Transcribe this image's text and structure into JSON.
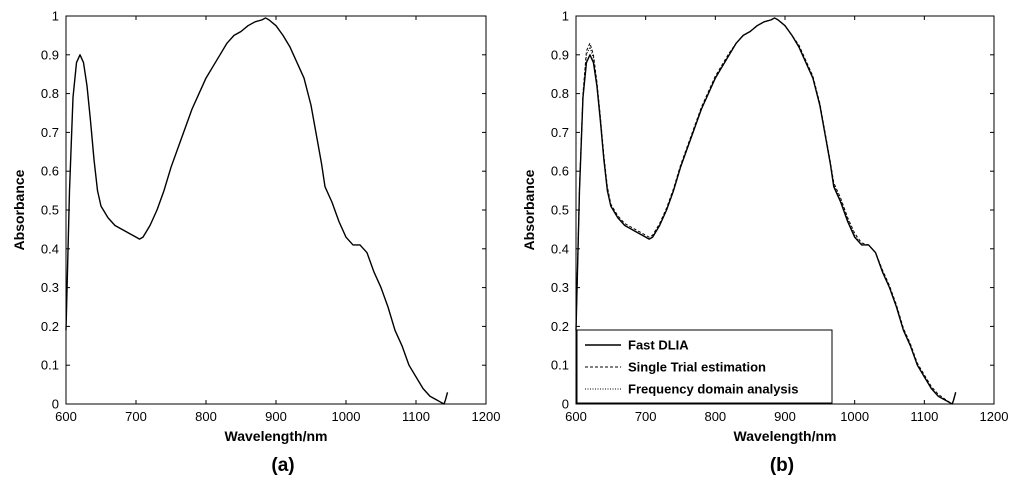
{
  "chart_data": [
    {
      "type": "line",
      "panel_label": "(a)",
      "xlabel": "Wavelength/nm",
      "ylabel": "Absorbance",
      "xlim": [
        600,
        1200
      ],
      "ylim": [
        0,
        1
      ],
      "xticks": [
        "600",
        "700",
        "800",
        "900",
        "1000",
        "1100",
        "1200"
      ],
      "yticks": [
        "0",
        "0.1",
        "0.2",
        "0.3",
        "0.4",
        "0.5",
        "0.6",
        "0.7",
        "0.8",
        "0.9",
        "1"
      ],
      "grid": false,
      "legend": null,
      "series": [
        {
          "color": "#000000",
          "style": "solid",
          "x": [
            600,
            605,
            610,
            615,
            620,
            625,
            630,
            635,
            640,
            645,
            650,
            660,
            670,
            680,
            690,
            700,
            705,
            710,
            720,
            730,
            740,
            750,
            760,
            770,
            780,
            790,
            800,
            810,
            820,
            830,
            840,
            850,
            860,
            870,
            880,
            885,
            890,
            900,
            910,
            920,
            930,
            940,
            950,
            955,
            960,
            965,
            970,
            975,
            980,
            990,
            1000,
            1010,
            1020,
            1030,
            1040,
            1050,
            1060,
            1070,
            1080,
            1090,
            1100,
            1110,
            1120,
            1130,
            1135,
            1140,
            1142,
            1145
          ],
          "y": [
            0.19,
            0.55,
            0.79,
            0.88,
            0.9,
            0.88,
            0.82,
            0.73,
            0.63,
            0.55,
            0.51,
            0.48,
            0.46,
            0.45,
            0.44,
            0.43,
            0.425,
            0.43,
            0.46,
            0.5,
            0.55,
            0.61,
            0.66,
            0.71,
            0.76,
            0.8,
            0.84,
            0.87,
            0.9,
            0.93,
            0.95,
            0.96,
            0.975,
            0.985,
            0.99,
            0.995,
            0.99,
            0.975,
            0.95,
            0.92,
            0.88,
            0.84,
            0.77,
            0.72,
            0.67,
            0.62,
            0.56,
            0.54,
            0.52,
            0.47,
            0.43,
            0.41,
            0.41,
            0.39,
            0.34,
            0.3,
            0.25,
            0.19,
            0.15,
            0.1,
            0.07,
            0.04,
            0.02,
            0.01,
            0.005,
            0.0,
            0.01,
            0.03
          ]
        }
      ]
    },
    {
      "type": "line",
      "panel_label": "(b)",
      "xlabel": "Wavelength/nm",
      "ylabel": "Absorbance",
      "xlim": [
        600,
        1200
      ],
      "ylim": [
        0,
        1
      ],
      "xticks": [
        "600",
        "700",
        "800",
        "900",
        "1000",
        "1100",
        "1200"
      ],
      "yticks": [
        "0",
        "0.1",
        "0.2",
        "0.3",
        "0.4",
        "0.5",
        "0.6",
        "0.7",
        "0.8",
        "0.9",
        "1"
      ],
      "grid": false,
      "legend": "bottom-left",
      "series": [
        {
          "name": "Fast DLIA",
          "color": "#000000",
          "style": "solid",
          "x": [
            600,
            605,
            610,
            615,
            620,
            625,
            630,
            635,
            640,
            645,
            650,
            660,
            670,
            680,
            690,
            700,
            705,
            710,
            720,
            730,
            740,
            750,
            760,
            770,
            780,
            790,
            800,
            810,
            820,
            830,
            840,
            850,
            860,
            870,
            880,
            885,
            890,
            900,
            910,
            920,
            930,
            940,
            950,
            955,
            960,
            965,
            970,
            975,
            980,
            990,
            1000,
            1010,
            1020,
            1030,
            1040,
            1050,
            1060,
            1070,
            1080,
            1090,
            1100,
            1110,
            1120,
            1130,
            1135,
            1140,
            1142,
            1145
          ],
          "y": [
            0.19,
            0.55,
            0.79,
            0.88,
            0.9,
            0.88,
            0.82,
            0.73,
            0.63,
            0.55,
            0.51,
            0.48,
            0.46,
            0.45,
            0.44,
            0.43,
            0.425,
            0.43,
            0.46,
            0.5,
            0.55,
            0.61,
            0.66,
            0.71,
            0.76,
            0.8,
            0.84,
            0.87,
            0.9,
            0.93,
            0.95,
            0.96,
            0.975,
            0.985,
            0.99,
            0.995,
            0.99,
            0.975,
            0.95,
            0.92,
            0.88,
            0.84,
            0.77,
            0.72,
            0.67,
            0.62,
            0.56,
            0.54,
            0.52,
            0.47,
            0.43,
            0.41,
            0.41,
            0.39,
            0.34,
            0.3,
            0.25,
            0.19,
            0.15,
            0.1,
            0.07,
            0.04,
            0.02,
            0.01,
            0.005,
            0.0,
            0.01,
            0.03
          ]
        },
        {
          "name": "Single Trial estimation",
          "color": "#000000",
          "style": "dashed",
          "x": [
            600,
            605,
            610,
            615,
            620,
            625,
            630,
            635,
            640,
            645,
            650,
            660,
            670,
            680,
            690,
            700,
            705,
            710,
            720,
            730,
            740,
            750,
            760,
            770,
            780,
            790,
            800,
            810,
            820,
            830,
            840,
            850,
            860,
            870,
            880,
            885,
            890,
            900,
            910,
            920,
            930,
            940,
            950,
            955,
            960,
            965,
            970,
            975,
            980,
            990,
            1000,
            1010,
            1020,
            1030,
            1040,
            1050,
            1060,
            1070,
            1080,
            1090,
            1100,
            1110,
            1120,
            1130,
            1135,
            1140,
            1142,
            1145
          ],
          "y": [
            0.19,
            0.56,
            0.8,
            0.91,
            0.93,
            0.9,
            0.83,
            0.74,
            0.64,
            0.56,
            0.515,
            0.485,
            0.465,
            0.455,
            0.445,
            0.435,
            0.43,
            0.435,
            0.465,
            0.505,
            0.555,
            0.615,
            0.665,
            0.715,
            0.765,
            0.805,
            0.845,
            0.875,
            0.905,
            0.93,
            0.95,
            0.96,
            0.975,
            0.985,
            0.99,
            0.995,
            0.99,
            0.975,
            0.95,
            0.925,
            0.885,
            0.845,
            0.775,
            0.725,
            0.675,
            0.625,
            0.57,
            0.55,
            0.53,
            0.48,
            0.44,
            0.415,
            0.41,
            0.39,
            0.345,
            0.305,
            0.255,
            0.195,
            0.155,
            0.105,
            0.075,
            0.045,
            0.025,
            0.012,
            0.006,
            0.0,
            0.012,
            0.03
          ]
        },
        {
          "name": "Frequency domain analysis",
          "color": "#000000",
          "style": "dotted",
          "x": [
            600,
            605,
            610,
            615,
            620,
            625,
            630,
            635,
            640,
            645,
            650,
            660,
            670,
            680,
            690,
            700,
            705,
            710,
            720,
            730,
            740,
            750,
            760,
            770,
            780,
            790,
            800,
            810,
            820,
            830,
            840,
            850,
            860,
            870,
            880,
            885,
            890,
            900,
            910,
            920,
            930,
            940,
            950,
            955,
            960,
            965,
            970,
            975,
            980,
            990,
            1000,
            1010,
            1020,
            1030,
            1040,
            1050,
            1060,
            1070,
            1080,
            1090,
            1100,
            1110,
            1120,
            1130,
            1135,
            1140,
            1142,
            1145
          ],
          "y": [
            0.19,
            0.555,
            0.795,
            0.9,
            0.92,
            0.89,
            0.825,
            0.735,
            0.635,
            0.555,
            0.51,
            0.48,
            0.46,
            0.45,
            0.44,
            0.43,
            0.425,
            0.43,
            0.46,
            0.5,
            0.55,
            0.61,
            0.66,
            0.71,
            0.76,
            0.8,
            0.84,
            0.87,
            0.9,
            0.93,
            0.95,
            0.96,
            0.975,
            0.985,
            0.99,
            0.995,
            0.99,
            0.975,
            0.95,
            0.92,
            0.88,
            0.84,
            0.77,
            0.72,
            0.67,
            0.62,
            0.565,
            0.545,
            0.525,
            0.475,
            0.435,
            0.41,
            0.41,
            0.39,
            0.34,
            0.3,
            0.25,
            0.19,
            0.15,
            0.1,
            0.07,
            0.04,
            0.02,
            0.01,
            0.005,
            0.0,
            0.01,
            0.03
          ]
        }
      ]
    }
  ]
}
